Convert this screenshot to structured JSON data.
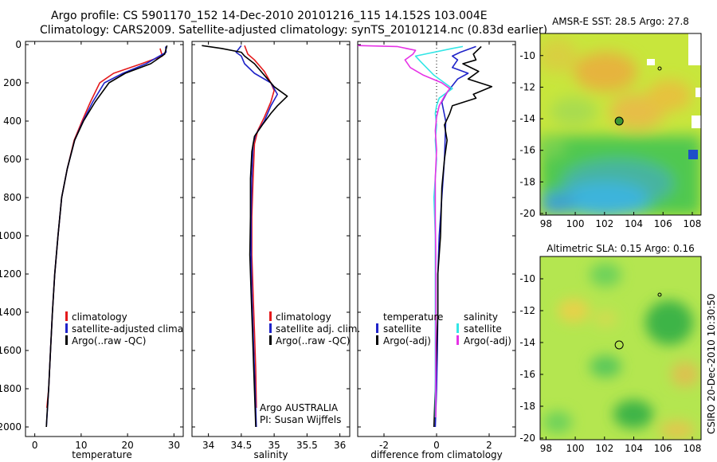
{
  "header": {
    "line1": "Argo profile: CS 5901170_152 14-Dec-2010 20101216_115 14.152S 103.004E",
    "line2": "Climatology: CARS2009. Satellite-adjusted climatology: synTS_20101214.nc (0.83d earlier)"
  },
  "credit": "CSIRO 20-Dec-2010 10:30:50",
  "colors": {
    "red": "#e41a1c",
    "blue": "#1f23c8",
    "black": "#000000",
    "cyan": "#33e6e6",
    "magenta": "#e633e6"
  },
  "depth_axis": {
    "ticks": [
      "0",
      "200",
      "400",
      "600",
      "800",
      "1000",
      "1200",
      "1400",
      "1600",
      "1800",
      "2000"
    ],
    "ylim": [
      0,
      2050
    ],
    "inverted": true
  },
  "chart_data": [
    {
      "type": "line",
      "xlabel": "temperature",
      "xlim": [
        -2,
        32
      ],
      "xticks": [
        "0",
        "10",
        "20",
        "30"
      ],
      "legend": [
        "climatology",
        "satellite-adjusted climatology",
        "Argo(..raw -QC)"
      ],
      "series": [
        {
          "name": "climatology",
          "color": "red",
          "points": [
            [
              27,
              20
            ],
            [
              27.5,
              60
            ],
            [
              23,
              100
            ],
            [
              17,
              150
            ],
            [
              14,
              200
            ],
            [
              12,
              300
            ],
            [
              10.2,
              400
            ],
            [
              8.5,
              500
            ],
            [
              7,
              650
            ],
            [
              5.8,
              800
            ],
            [
              5,
              1000
            ],
            [
              4.3,
              1200
            ],
            [
              3.8,
              1400
            ],
            [
              3.4,
              1600
            ],
            [
              3,
              1800
            ],
            [
              2.6,
              1900
            ]
          ]
        },
        {
          "name": "satellite-adjusted climatology",
          "color": "blue",
          "points": [
            [
              28.2,
              10
            ],
            [
              28.3,
              40
            ],
            [
              24,
              100
            ],
            [
              19,
              150
            ],
            [
              15,
              200
            ],
            [
              12.5,
              300
            ],
            [
              10.4,
              400
            ],
            [
              8.6,
              500
            ],
            [
              7,
              650
            ],
            [
              5.8,
              800
            ],
            [
              5,
              1000
            ],
            [
              4.3,
              1200
            ],
            [
              3.8,
              1400
            ],
            [
              3.4,
              1600
            ],
            [
              3,
              1800
            ],
            [
              2.5,
              2000
            ]
          ]
        },
        {
          "name": "Argo(..raw -QC)",
          "color": "black",
          "points": [
            [
              28.5,
              5
            ],
            [
              28,
              50
            ],
            [
              25,
              100
            ],
            [
              19.5,
              150
            ],
            [
              16,
              200
            ],
            [
              13,
              300
            ],
            [
              10.5,
              400
            ],
            [
              8.6,
              500
            ],
            [
              7,
              650
            ],
            [
              5.8,
              800
            ],
            [
              5,
              1000
            ],
            [
              4.3,
              1200
            ],
            [
              3.8,
              1400
            ],
            [
              3.4,
              1600
            ],
            [
              3,
              1800
            ],
            [
              2.6,
              1950
            ],
            [
              2.5,
              2000
            ]
          ]
        }
      ]
    },
    {
      "type": "line",
      "xlabel": "salinity",
      "xlim": [
        33.75,
        36.15
      ],
      "xticks": [
        "34",
        "34.5",
        "35",
        "35.5",
        "36"
      ],
      "legend": [
        "climatology",
        "satellite adj. clim.",
        "Argo(..raw -QC)"
      ],
      "annotations": [
        "Argo AUSTRALIA",
        "PI: Susan Wijffels"
      ],
      "series": [
        {
          "name": "climatology",
          "color": "red",
          "points": [
            [
              34.55,
              5
            ],
            [
              34.6,
              50
            ],
            [
              34.7,
              80
            ],
            [
              34.85,
              140
            ],
            [
              34.95,
              200
            ],
            [
              35.0,
              240
            ],
            [
              34.95,
              300
            ],
            [
              34.85,
              380
            ],
            [
              34.75,
              450
            ],
            [
              34.7,
              520
            ],
            [
              34.68,
              700
            ],
            [
              34.66,
              900
            ],
            [
              34.66,
              1100
            ],
            [
              34.68,
              1300
            ],
            [
              34.7,
              1500
            ],
            [
              34.72,
              1700
            ],
            [
              34.73,
              1900
            ]
          ]
        },
        {
          "name": "satellite adj. clim.",
          "color": "blue",
          "points": [
            [
              34.5,
              5
            ],
            [
              34.42,
              40
            ],
            [
              34.5,
              60
            ],
            [
              34.55,
              100
            ],
            [
              34.7,
              150
            ],
            [
              34.95,
              200
            ],
            [
              35.05,
              260
            ],
            [
              34.95,
              320
            ],
            [
              34.85,
              400
            ],
            [
              34.72,
              470
            ],
            [
              34.68,
              520
            ],
            [
              34.66,
              700
            ],
            [
              34.65,
              900
            ],
            [
              34.65,
              1100
            ],
            [
              34.66,
              1300
            ],
            [
              34.68,
              1500
            ],
            [
              34.7,
              1700
            ],
            [
              34.72,
              1900
            ],
            [
              34.73,
              2000
            ]
          ]
        },
        {
          "name": "Argo(..raw -QC)",
          "color": "black",
          "points": [
            [
              33.9,
              5
            ],
            [
              34.2,
              20
            ],
            [
              34.5,
              40
            ],
            [
              34.55,
              60
            ],
            [
              34.7,
              100
            ],
            [
              34.9,
              180
            ],
            [
              35.0,
              220
            ],
            [
              35.2,
              270
            ],
            [
              35.05,
              320
            ],
            [
              34.95,
              360
            ],
            [
              34.82,
              420
            ],
            [
              34.7,
              480
            ],
            [
              34.66,
              560
            ],
            [
              34.64,
              700
            ],
            [
              34.64,
              900
            ],
            [
              34.63,
              1100
            ],
            [
              34.65,
              1300
            ],
            [
              34.67,
              1500
            ],
            [
              34.69,
              1700
            ],
            [
              34.71,
              1900
            ],
            [
              34.72,
              2000
            ]
          ]
        }
      ]
    },
    {
      "type": "line",
      "xlabel": "difference from climatology",
      "xlim": [
        -3,
        3
      ],
      "xticks": [
        "-2",
        "0",
        "2"
      ],
      "legend_temperature": {
        "title": "temperature",
        "items": [
          "satellite",
          "Argo(-adj)"
        ]
      },
      "legend_salinity": {
        "title": "salinity",
        "items": [
          "satellite",
          "Argo(-adj)"
        ]
      },
      "series": [
        {
          "name": "temperature satellite",
          "color": "blue",
          "points": [
            [
              1.5,
              10
            ],
            [
              0.9,
              40
            ],
            [
              0.6,
              60
            ],
            [
              0.8,
              80
            ],
            [
              0.6,
              120
            ],
            [
              1.2,
              150
            ],
            [
              0.8,
              180
            ],
            [
              0.4,
              250
            ],
            [
              0.2,
              300
            ],
            [
              0.35,
              400
            ],
            [
              0.3,
              600
            ],
            [
              0.2,
              800
            ],
            [
              0.1,
              1000
            ],
            [
              0.05,
              1200
            ],
            [
              0.05,
              1400
            ],
            [
              0.03,
              1600
            ],
            [
              0,
              1800
            ],
            [
              -0.05,
              2000
            ]
          ]
        },
        {
          "name": "temperature Argo(-adj)",
          "color": "black",
          "points": [
            [
              1.7,
              10
            ],
            [
              1.4,
              50
            ],
            [
              1.5,
              80
            ],
            [
              1.0,
              100
            ],
            [
              1.6,
              140
            ],
            [
              1.2,
              180
            ],
            [
              2.1,
              220
            ],
            [
              1.4,
              260
            ],
            [
              1.5,
              280
            ],
            [
              0.6,
              320
            ],
            [
              0.5,
              360
            ],
            [
              0.3,
              420
            ],
            [
              0.4,
              500
            ],
            [
              0.3,
              600
            ],
            [
              0.2,
              750
            ],
            [
              0.15,
              1000
            ],
            [
              0.05,
              1200
            ],
            [
              0.05,
              1400
            ],
            [
              0,
              1600
            ],
            [
              -0.05,
              1800
            ],
            [
              -0.1,
              2000
            ]
          ]
        },
        {
          "name": "salinity satellite",
          "color": "cyan",
          "points": [
            [
              1.0,
              10
            ],
            [
              0.6,
              20
            ],
            [
              -0.8,
              60
            ],
            [
              -0.6,
              90
            ],
            [
              -0.1,
              160
            ],
            [
              0.3,
              200
            ],
            [
              0.6,
              230
            ],
            [
              0.1,
              280
            ],
            [
              0.0,
              320
            ],
            [
              -0.05,
              360
            ],
            [
              0.0,
              420
            ],
            [
              -0.05,
              500
            ],
            [
              0.0,
              600
            ],
            [
              -0.1,
              800
            ],
            [
              -0.05,
              1000
            ],
            [
              -0.05,
              1200
            ],
            [
              -0.05,
              1400
            ],
            [
              -0.05,
              1600
            ],
            [
              -0.05,
              1800
            ],
            [
              -0.05,
              1950
            ]
          ]
        },
        {
          "name": "salinity Argo(-adj)",
          "color": "magenta",
          "points": [
            [
              -3.0,
              5
            ],
            [
              -1.5,
              10
            ],
            [
              -0.8,
              30
            ],
            [
              -0.9,
              50
            ],
            [
              -1.2,
              80
            ],
            [
              -1.0,
              120
            ],
            [
              -0.5,
              160
            ],
            [
              0.2,
              200
            ],
            [
              0.5,
              230
            ],
            [
              0.3,
              270
            ],
            [
              0.1,
              320
            ],
            [
              0.0,
              380
            ],
            [
              -0.05,
              450
            ],
            [
              0.0,
              550
            ],
            [
              -0.05,
              700
            ],
            [
              -0.05,
              900
            ],
            [
              -0.03,
              1100
            ],
            [
              -0.03,
              1300
            ],
            [
              -0.03,
              1500
            ],
            [
              -0.03,
              1700
            ],
            [
              -0.03,
              1950
            ]
          ]
        }
      ]
    }
  ],
  "maps": [
    {
      "title": "AMSR-E SST: 28.5 Argo: 27.8",
      "type": "heatmap",
      "xticks": [
        "98",
        "100",
        "102",
        "104",
        "106",
        "108"
      ],
      "yticks": [
        "-10",
        "-12",
        "-14",
        "-16",
        "-18",
        "-20"
      ],
      "marker": {
        "lon": 103.0,
        "lat": -14.15
      }
    },
    {
      "title": "Altimetric SLA: 0.15 Argo: 0.16",
      "type": "heatmap",
      "xticks": [
        "98",
        "100",
        "102",
        "104",
        "106",
        "108"
      ],
      "yticks": [
        "-10",
        "-12",
        "-14",
        "-16",
        "-18",
        "-20"
      ],
      "marker": {
        "lon": 103.0,
        "lat": -14.15
      }
    }
  ]
}
